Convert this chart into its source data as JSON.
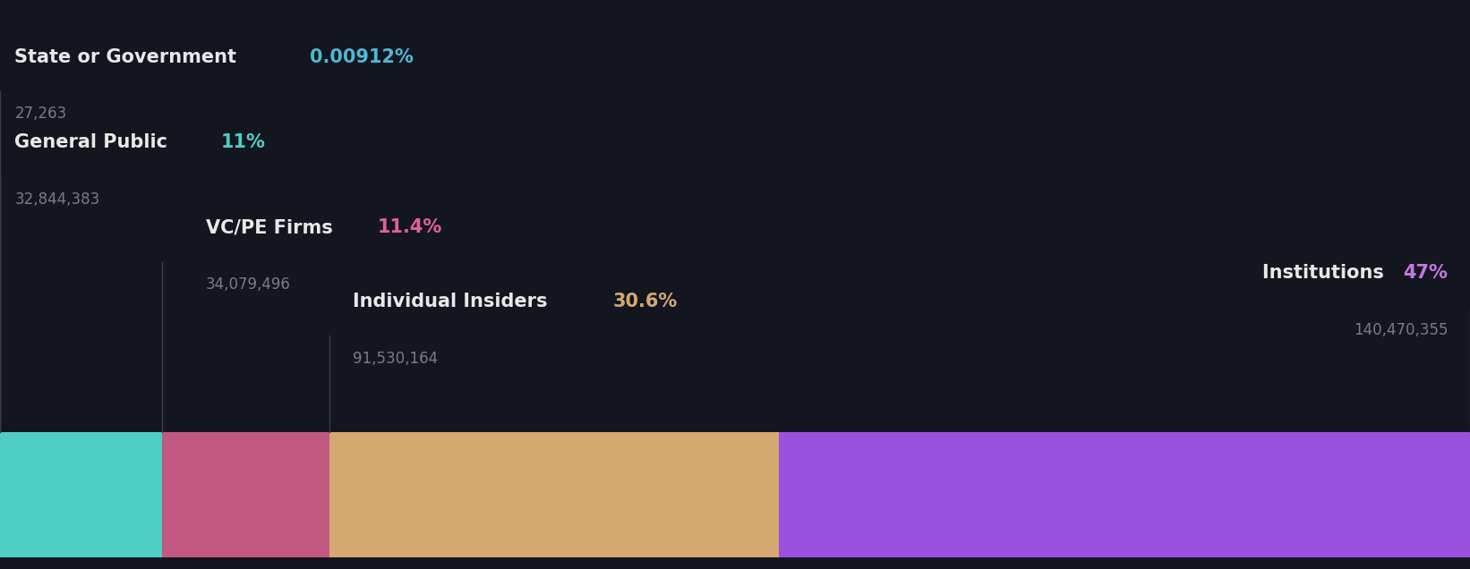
{
  "background_color": "#13161f",
  "categories": [
    "State or Government",
    "General Public",
    "VC/PE Firms",
    "Individual Insiders",
    "Institutions"
  ],
  "percentages": [
    0.00912,
    11.0,
    11.4,
    30.6,
    47.0
  ],
  "pct_labels": [
    "0.00912%",
    "11%",
    "11.4%",
    "30.6%",
    "47%"
  ],
  "share_counts": [
    "27,263",
    "32,844,383",
    "34,079,496",
    "91,530,164",
    "140,470,355"
  ],
  "segment_colors": [
    "#4ecdc4",
    "#4ecdc4",
    "#c05880",
    "#d4a870",
    "#9b51e0"
  ],
  "pct_colors": [
    "#4eb8d4",
    "#4ecdc4",
    "#e0609a",
    "#d4a870",
    "#c07ae0"
  ],
  "label_text_color": "#e8e8e8",
  "count_text_color": "#7a7a8a",
  "figsize": [
    16.42,
    6.36
  ]
}
